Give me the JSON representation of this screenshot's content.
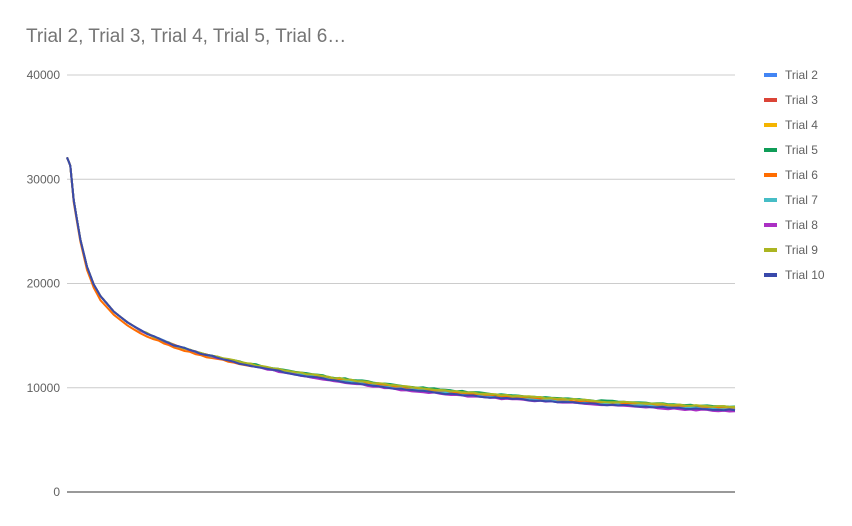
{
  "chart_data": {
    "type": "line",
    "title": "Trial 2, Trial 3, Trial 4, Trial 5, Trial 6…",
    "xlabel": "",
    "ylabel": "",
    "ylim": [
      0,
      40000
    ],
    "y_ticks": [
      "0",
      "10000",
      "20000",
      "30000",
      "40000"
    ],
    "y_tick_values": [
      0,
      10000,
      20000,
      30000,
      40000
    ],
    "xlim": [
      0,
      1
    ],
    "grid": true,
    "legend_position": "right",
    "x": [
      0,
      0.005,
      0.01,
      0.02,
      0.03,
      0.04,
      0.05,
      0.07,
      0.09,
      0.11,
      0.13,
      0.16,
      0.2,
      0.25,
      0.3,
      0.35,
      0.4,
      0.45,
      0.5,
      0.55,
      0.6,
      0.65,
      0.7,
      0.75,
      0.8,
      0.85,
      0.9,
      0.95,
      1.0
    ],
    "series": [
      {
        "name": "Trial 2",
        "color": "#4285f4",
        "values": [
          32100,
          31300,
          28000,
          24200,
          21600,
          19900,
          18800,
          17300,
          16300,
          15500,
          14900,
          14100,
          13300,
          12500,
          11800,
          11200,
          10700,
          10300,
          9900,
          9600,
          9300,
          9050,
          8850,
          8650,
          8450,
          8300,
          8150,
          8000,
          7900
        ]
      },
      {
        "name": "Trial 3",
        "color": "#db4437",
        "values": [
          32100,
          31300,
          28000,
          24200,
          21600,
          19900,
          18800,
          17300,
          16300,
          15500,
          14900,
          14100,
          13300,
          12500,
          11850,
          11250,
          10750,
          10350,
          9950,
          9650,
          9350,
          9100,
          8900,
          8700,
          8500,
          8350,
          8200,
          8050,
          7950
        ]
      },
      {
        "name": "Trial 4",
        "color": "#f4b400",
        "values": [
          32100,
          31300,
          28000,
          24200,
          21600,
          19900,
          18800,
          17300,
          16300,
          15500,
          14900,
          14100,
          13300,
          12550,
          11900,
          11300,
          10850,
          10450,
          10050,
          9750,
          9450,
          9200,
          9000,
          8800,
          8600,
          8450,
          8300,
          8150,
          8050
        ]
      },
      {
        "name": "Trial 5",
        "color": "#0f9d58",
        "values": [
          32100,
          31300,
          28000,
          24200,
          21600,
          19900,
          18800,
          17300,
          16300,
          15500,
          14900,
          14100,
          13300,
          12600,
          12000,
          11450,
          11000,
          10600,
          10200,
          9900,
          9600,
          9350,
          9150,
          8950,
          8750,
          8600,
          8450,
          8300,
          8200
        ]
      },
      {
        "name": "Trial 6",
        "color": "#ff6d00",
        "values": [
          32100,
          31300,
          27800,
          24000,
          21300,
          19600,
          18400,
          17000,
          16000,
          15200,
          14700,
          13900,
          13100,
          12400,
          11800,
          11250,
          10800,
          10400,
          10000,
          9700,
          9400,
          9150,
          8950,
          8750,
          8550,
          8400,
          8250,
          8100,
          8000
        ]
      },
      {
        "name": "Trial 7",
        "color": "#46bdc6",
        "values": [
          32100,
          31300,
          28000,
          24200,
          21600,
          19900,
          18800,
          17300,
          16300,
          15500,
          14900,
          14100,
          13300,
          12500,
          11850,
          11250,
          10750,
          10300,
          9900,
          9600,
          9300,
          9050,
          8850,
          8650,
          8450,
          8300,
          8150,
          8000,
          7900
        ]
      },
      {
        "name": "Trial 8",
        "color": "#ab30c4",
        "values": [
          32100,
          31300,
          28000,
          24200,
          21600,
          19900,
          18800,
          17300,
          16300,
          15500,
          14900,
          14100,
          13300,
          12450,
          11750,
          11150,
          10650,
          10200,
          9800,
          9500,
          9200,
          8950,
          8750,
          8550,
          8350,
          8200,
          8000,
          7850,
          7750
        ]
      },
      {
        "name": "Trial 9",
        "color": "#abb521",
        "values": [
          32100,
          31300,
          28000,
          24200,
          21600,
          19900,
          18800,
          17300,
          16300,
          15500,
          14900,
          14100,
          13300,
          12600,
          11950,
          11400,
          10950,
          10550,
          10150,
          9850,
          9550,
          9300,
          9100,
          8900,
          8700,
          8550,
          8400,
          8250,
          8150
        ]
      },
      {
        "name": "Trial 10",
        "color": "#3949ab",
        "values": [
          32100,
          31300,
          28000,
          24200,
          21600,
          19900,
          18800,
          17300,
          16300,
          15500,
          14900,
          14100,
          13300,
          12450,
          11800,
          11200,
          10700,
          10250,
          9850,
          9550,
          9250,
          9000,
          8800,
          8600,
          8400,
          8250,
          8100,
          7950,
          7850
        ]
      }
    ]
  }
}
